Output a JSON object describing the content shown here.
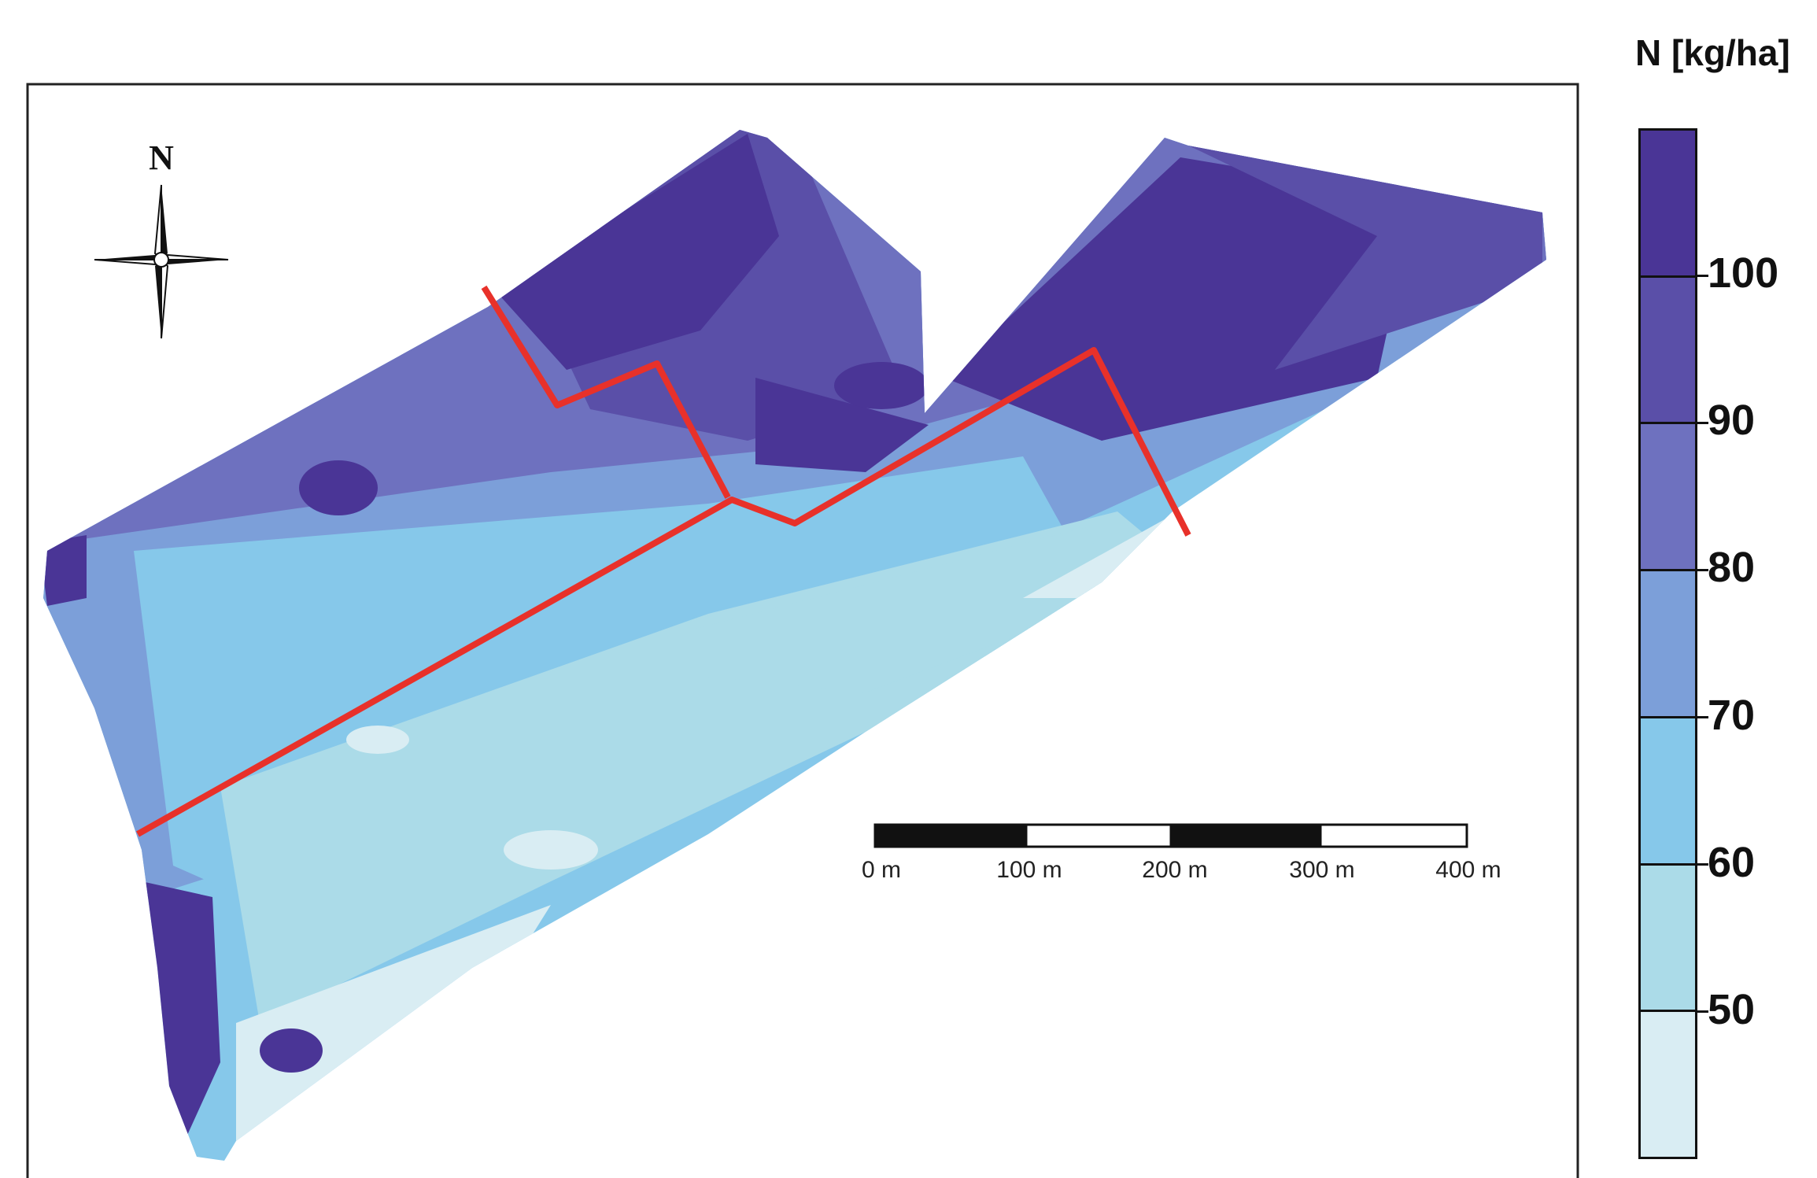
{
  "legend": {
    "title": "N [kg/ha]",
    "classes": [
      {
        "label": "100",
        "color": "#4a3596"
      },
      {
        "label": "90",
        "color": "#5a4fa8"
      },
      {
        "label": "80",
        "color": "#6e71bf"
      },
      {
        "label": "70",
        "color": "#7c9fd9"
      },
      {
        "label": "60",
        "color": "#86c8ea"
      },
      {
        "label": "50",
        "color": "#abdbe8"
      },
      {
        "label": "",
        "color": "#d9edf3"
      }
    ]
  },
  "compass": {
    "label": "N"
  },
  "scalebar": {
    "labels": [
      "0 m",
      "100 m",
      "200 m",
      "300 m",
      "400 m"
    ]
  },
  "colors": {
    "zone_boundary": "#e8312a",
    "frame": "#222222"
  }
}
